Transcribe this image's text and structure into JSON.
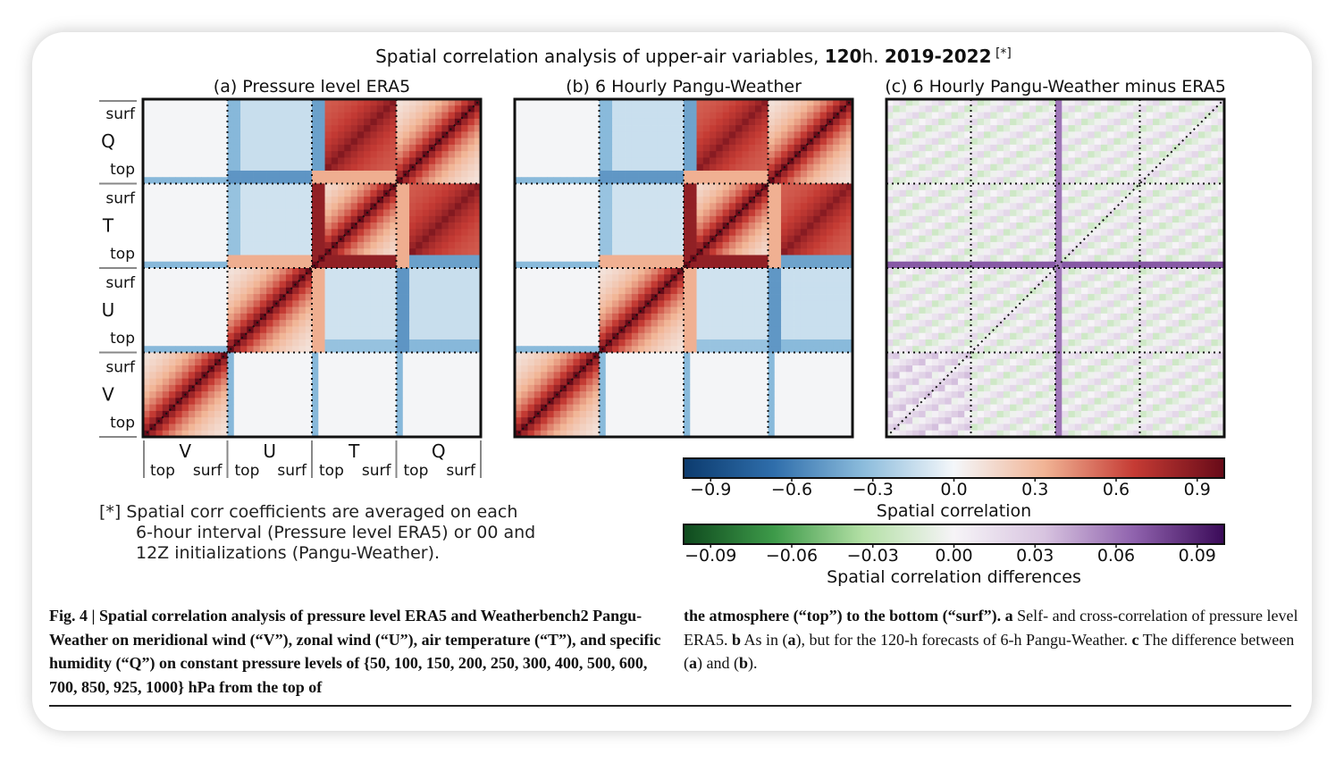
{
  "figure": {
    "title_prefix": "Spatial correlation analysis of upper-air variables, ",
    "title_hours_bold": "120",
    "title_hours_unit": "h. ",
    "title_years_bold": "2019-2022",
    "title_ref": " [*]",
    "panels": [
      {
        "id": "a",
        "title": "(a) Pressure level ERA5",
        "kind": "corr"
      },
      {
        "id": "b",
        "title": "(b) 6 Hourly Pangu-Weather",
        "kind": "corr"
      },
      {
        "id": "c",
        "title": "(c) 6 Hourly Pangu-Weather minus ERA5",
        "kind": "diff"
      }
    ],
    "row_groups": [
      {
        "var": "Q",
        "top_label": "surf",
        "bottom_label": "top"
      },
      {
        "var": "T",
        "top_label": "surf",
        "bottom_label": "top"
      },
      {
        "var": "U",
        "top_label": "surf",
        "bottom_label": "top"
      },
      {
        "var": "V",
        "top_label": "surf",
        "bottom_label": "top"
      }
    ],
    "col_groups": [
      {
        "var": "V",
        "left_label": "top",
        "right_label": "surf"
      },
      {
        "var": "U",
        "left_label": "top",
        "right_label": "surf"
      },
      {
        "var": "T",
        "left_label": "top",
        "right_label": "surf"
      },
      {
        "var": "Q",
        "left_label": "top",
        "right_label": "surf"
      }
    ],
    "footnote": [
      "[*] Spatial corr coefficients are averaged on each",
      "6-hour interval (Pressure level ERA5) or 00 and",
      "12Z initializations (Pangu-Weather)."
    ],
    "colorbars": [
      {
        "name": "corr",
        "label": "Spatial correlation",
        "ticks": [
          "−0.9",
          "−0.6",
          "−0.3",
          "0.0",
          "0.3",
          "0.6",
          "0.9"
        ],
        "tick_values": [
          -0.9,
          -0.6,
          -0.3,
          0.0,
          0.3,
          0.6,
          0.9
        ],
        "range": [
          -1.0,
          1.0
        ],
        "colors": [
          "#0c3b6e",
          "#2f6eab",
          "#8cbcdc",
          "#f4f7fa",
          "#f1b495",
          "#c53b34",
          "#670a18"
        ]
      },
      {
        "name": "diff",
        "label": "Spatial correlation differences",
        "ticks": [
          "−0.09",
          "−0.06",
          "−0.03",
          "0.00",
          "0.03",
          "0.06",
          "0.09"
        ],
        "tick_values": [
          -0.09,
          -0.06,
          -0.03,
          0.0,
          0.03,
          0.06,
          0.09
        ],
        "range": [
          -0.1,
          0.1
        ],
        "colors": [
          "#0f4a1e",
          "#3d9a49",
          "#b4e0a6",
          "#f6f4f7",
          "#d8c4e0",
          "#8f62ad",
          "#3a0a58"
        ]
      }
    ]
  },
  "chart_data": {
    "type": "heatmap",
    "title": "Spatial correlation analysis of upper-air variables, 120h. 2019-2022 [*]",
    "variables_order": [
      "V",
      "U",
      "T",
      "Q"
    ],
    "levels_per_variable": 13,
    "pressure_levels_hPa": [
      50,
      100,
      150,
      200,
      250,
      300,
      400,
      500,
      600,
      700,
      850,
      925,
      1000
    ],
    "panels": [
      "(a) Pressure level ERA5",
      "(b) 6 Hourly Pangu-Weather",
      "(c) 6 Hourly Pangu-Weather minus ERA5"
    ],
    "block_values_panel_a": {
      "rows": [
        "Q",
        "T",
        "U",
        "V"
      ],
      "cols": [
        "V",
        "U",
        "T",
        "Q"
      ],
      "values": [
        [
          0.0,
          -0.25,
          0.7,
          0.7
        ],
        [
          0.0,
          0.02,
          0.85,
          0.7
        ],
        [
          0.0,
          0.7,
          -0.15,
          -0.15
        ],
        [
          0.7,
          0.0,
          0.0,
          0.0
        ]
      ]
    },
    "colorbar_range": [
      -1.0,
      1.0
    ],
    "diff_colorbar_range": [
      -0.1,
      0.1
    ]
  },
  "caption": {
    "left": "Fig. 4 | Spatial correlation analysis of pressure level ERA5 and Weatherbench2 Pangu-Weather on meridional wind (“V”), zonal wind (“U”), air temperature (“T”), and specific humidity (“Q”) on constant pressure levels of {50, 100, 150, 200, 250, 300, 400, 500, 600, 700, 850, 925, 1000} hPa from the top of",
    "right_1": "the atmosphere (“top”) to the bottom (“surf”). ",
    "right_a": "a",
    "right_2": " Self- and cross-correlation of pressure level ERA5. ",
    "right_b": "b",
    "right_3": " As in (",
    "right_a2": "a",
    "right_4": "), but for the 120-h forecasts of 6-h Pangu-Weather. ",
    "right_c": "c",
    "right_5": " The difference between (",
    "right_a3": "a",
    "right_6": ") and (",
    "right_b2": "b",
    "right_7": ")."
  }
}
